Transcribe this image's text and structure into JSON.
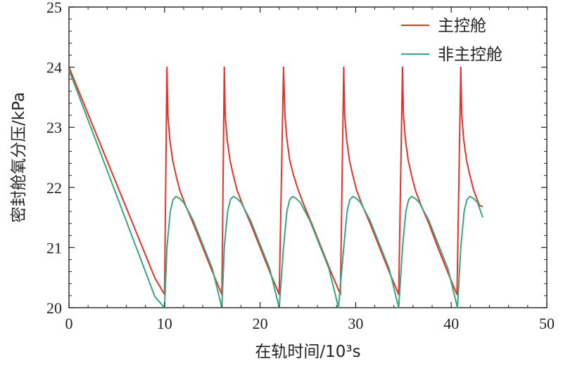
{
  "chart_data": {
    "type": "line",
    "title": "",
    "xlabel": "在轨时间/10³s",
    "ylabel": "密封舱氧分压/kPa",
    "xlim": [
      0,
      50
    ],
    "ylim": [
      20,
      25
    ],
    "xticks": [
      "0",
      "10",
      "20",
      "30",
      "40",
      "50"
    ],
    "yticks": [
      "20",
      "21",
      "22",
      "23",
      "24",
      "25"
    ],
    "grid": false,
    "legend_position": "top-right",
    "series": [
      {
        "name": "主控舱",
        "color": "#e8302a",
        "x": [
          0,
          1.0,
          2.0,
          3.0,
          4.0,
          5.0,
          6.0,
          7.0,
          8.0,
          9.0,
          10.0,
          10.25,
          10.35,
          10.55,
          10.85,
          11.2,
          11.6,
          12.2,
          13.0,
          14.0,
          15.0,
          16.0,
          16.25,
          16.35,
          16.55,
          16.85,
          17.2,
          17.6,
          18.2,
          19.0,
          20.0,
          21.0,
          22.0,
          22.45,
          22.6,
          22.8,
          23.1,
          23.5,
          24.0,
          24.6,
          25.4,
          26.4,
          27.4,
          28.4,
          28.75,
          28.85,
          29.05,
          29.35,
          29.7,
          30.1,
          30.7,
          31.5,
          32.5,
          33.5,
          34.5,
          34.9,
          35.0,
          35.2,
          35.5,
          35.85,
          36.25,
          36.85,
          37.65,
          38.6,
          39.6,
          40.6,
          41.0,
          41.1,
          41.3,
          41.6,
          41.95,
          42.35,
          42.95,
          43.3
        ],
        "values": [
          24.0,
          23.61,
          23.22,
          22.83,
          22.44,
          22.05,
          21.66,
          21.27,
          20.88,
          20.49,
          20.22,
          24.0,
          23.2,
          22.8,
          22.45,
          22.2,
          21.95,
          21.7,
          21.4,
          21.0,
          20.6,
          20.22,
          24.0,
          23.2,
          22.8,
          22.45,
          22.2,
          21.95,
          21.7,
          21.4,
          21.0,
          20.6,
          20.22,
          24.0,
          23.2,
          22.8,
          22.45,
          22.2,
          21.95,
          21.7,
          21.4,
          21.0,
          20.6,
          20.22,
          24.0,
          23.2,
          22.8,
          22.45,
          22.2,
          21.95,
          21.7,
          21.4,
          21.0,
          20.6,
          20.22,
          24.0,
          23.2,
          22.8,
          22.45,
          22.2,
          21.95,
          21.7,
          21.4,
          21.0,
          20.6,
          20.22,
          24.0,
          23.2,
          22.8,
          22.45,
          22.2,
          21.95,
          21.7,
          21.68
        ]
      },
      {
        "name": "非主控舱",
        "color": "#3aa57c",
        "x": [
          0,
          1.0,
          2.0,
          3.0,
          4.0,
          5.0,
          6.0,
          7.0,
          8.0,
          9.0,
          10.0,
          10.25,
          10.6,
          10.9,
          11.2,
          11.55,
          12.0,
          13.0,
          14.0,
          15.0,
          16.0,
          16.25,
          16.6,
          16.9,
          17.2,
          17.55,
          18.0,
          19.0,
          20.0,
          21.0,
          22.0,
          22.45,
          22.8,
          23.1,
          23.4,
          23.75,
          24.2,
          25.2,
          26.2,
          27.2,
          28.2,
          28.75,
          29.1,
          29.4,
          29.7,
          30.05,
          30.5,
          31.5,
          32.5,
          33.5,
          34.5,
          34.9,
          35.25,
          35.55,
          35.85,
          36.2,
          36.65,
          37.65,
          38.65,
          39.65,
          40.65,
          41.0,
          41.35,
          41.65,
          41.95,
          42.3,
          42.75,
          43.3
        ],
        "values": [
          23.95,
          23.54,
          23.12,
          22.7,
          22.28,
          21.86,
          21.44,
          21.02,
          20.6,
          20.18,
          20.0,
          21.0,
          21.6,
          21.8,
          21.85,
          21.82,
          21.75,
          21.45,
          21.05,
          20.65,
          20.0,
          21.0,
          21.6,
          21.8,
          21.85,
          21.82,
          21.75,
          21.45,
          21.05,
          20.65,
          20.0,
          21.0,
          21.6,
          21.8,
          21.85,
          21.82,
          21.75,
          21.45,
          21.05,
          20.65,
          20.0,
          21.0,
          21.6,
          21.8,
          21.85,
          21.82,
          21.75,
          21.45,
          21.05,
          20.65,
          20.0,
          21.0,
          21.6,
          21.8,
          21.85,
          21.82,
          21.75,
          21.45,
          21.05,
          20.65,
          20.0,
          21.0,
          21.6,
          21.8,
          21.85,
          21.82,
          21.75,
          21.5
        ]
      }
    ]
  }
}
